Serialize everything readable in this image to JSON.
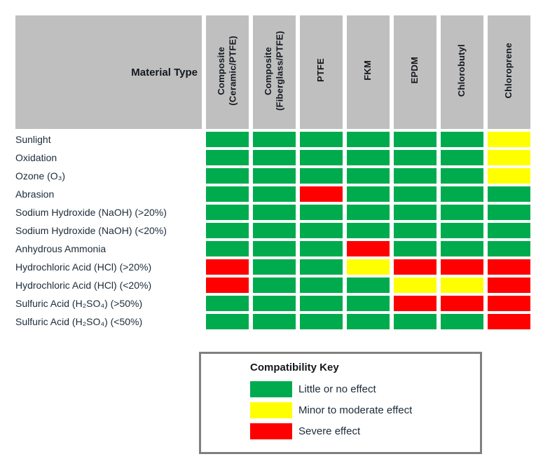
{
  "table": {
    "corner_label": "Material Type",
    "header_bg": "#BFBFBF"
  },
  "chart_data": {
    "type": "heatmap",
    "title": "",
    "x_header": "Material Type",
    "x_labels": [
      "Composite\n(Ceramic/PTFE)",
      "Composite\n(Fiberglass/PTFE)",
      "PTFE",
      "FKM",
      "EPDM",
      "Chlorobutyl",
      "Chloroprene"
    ],
    "y_labels": [
      "Sunlight",
      "Oxidation",
      "Ozone (O₃)",
      "Abrasion",
      "Sodium Hydroxide (NaOH) (>20%)",
      "Sodium Hydroxide (NaOH) (<20%)",
      "Anhydrous Ammonia",
      "Hydrochloric Acid (HCl) (>20%)",
      "Hydrochloric Acid (HCl) (<20%)",
      "Sulfuric Acid (H₂SO₄) (>50%)",
      "Sulfuric Acid (H₂SO₄) (<50%)"
    ],
    "values": [
      [
        "G",
        "G",
        "G",
        "G",
        "G",
        "G",
        "Y"
      ],
      [
        "G",
        "G",
        "G",
        "G",
        "G",
        "G",
        "Y"
      ],
      [
        "G",
        "G",
        "G",
        "G",
        "G",
        "G",
        "Y"
      ],
      [
        "G",
        "G",
        "R",
        "G",
        "G",
        "G",
        "G"
      ],
      [
        "G",
        "G",
        "G",
        "G",
        "G",
        "G",
        "G"
      ],
      [
        "G",
        "G",
        "G",
        "G",
        "G",
        "G",
        "G"
      ],
      [
        "G",
        "G",
        "G",
        "R",
        "G",
        "G",
        "G"
      ],
      [
        "R",
        "G",
        "G",
        "Y",
        "R",
        "R",
        "R"
      ],
      [
        "R",
        "G",
        "G",
        "G",
        "Y",
        "Y",
        "R"
      ],
      [
        "G",
        "G",
        "G",
        "G",
        "R",
        "R",
        "R"
      ],
      [
        "G",
        "G",
        "G",
        "G",
        "G",
        "G",
        "R"
      ]
    ],
    "value_meanings": {
      "G": "Little or no effect",
      "Y": "Minor to moderate effect",
      "R": "Severe effect"
    },
    "colors": {
      "G": "#00AB4E",
      "Y": "#FFFF00",
      "R": "#FF0000"
    }
  },
  "legend": {
    "title": "Compatibility Key",
    "items": [
      {
        "code": "G",
        "label": "Little or no effect"
      },
      {
        "code": "Y",
        "label": "Minor to moderate effect"
      },
      {
        "code": "R",
        "label": "Severe effect"
      }
    ]
  }
}
